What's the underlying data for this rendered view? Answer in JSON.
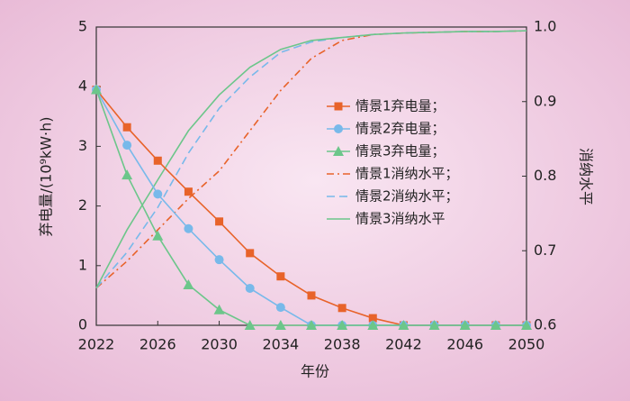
{
  "chart_data": {
    "type": "line",
    "x_label": "年份",
    "y_label": "弃电量/(10⁹kW·h)",
    "y2_label": "消纳水平",
    "x": [
      2022,
      2024,
      2026,
      2028,
      2030,
      2032,
      2034,
      2036,
      2038,
      2040,
      2042,
      2044,
      2046,
      2048,
      2050
    ],
    "xlim": [
      2022,
      2050
    ],
    "xticks": [
      2022,
      2026,
      2030,
      2034,
      2038,
      2042,
      2046,
      2050
    ],
    "ylim": [
      0,
      5
    ],
    "yticks": [
      0,
      1,
      2,
      3,
      4,
      5
    ],
    "y2lim": [
      0.6,
      1
    ],
    "y2ticks": [
      0.6,
      0.7,
      0.8,
      0.9,
      {
        "value": 1,
        "label": "1.0"
      }
    ],
    "series": [
      {
        "name": "情景1弃电量；",
        "color": "#e8632a",
        "marker": "square",
        "style": "solid",
        "values": [
          3.95,
          3.32,
          2.76,
          2.24,
          1.74,
          1.21,
          0.82,
          0.5,
          0.29,
          0.12,
          0,
          0,
          0,
          0,
          0
        ]
      },
      {
        "name": "情景2弃电量；",
        "color": "#78b9ea",
        "marker": "circle",
        "style": "solid",
        "values": [
          3.95,
          3.02,
          2.2,
          1.62,
          1.1,
          0.62,
          0.3,
          0,
          0,
          0,
          0,
          0,
          0,
          0,
          0
        ]
      },
      {
        "name": "情景3弃电量；",
        "color": "#6cc68a",
        "marker": "triangle",
        "style": "solid",
        "values": [
          3.95,
          2.52,
          1.5,
          0.68,
          0.26,
          0,
          0,
          0,
          0,
          0,
          0,
          0,
          0,
          0,
          0
        ]
      },
      {
        "name": "情景1消纳水平；",
        "color": "#e8632a",
        "style": "dashdot",
        "axis": "y2",
        "values": [
          0.65,
          0.686,
          0.728,
          0.77,
          0.807,
          0.861,
          0.915,
          0.958,
          0.982,
          0.99,
          0.992,
          0.993,
          0.994,
          0.994,
          0.995
        ]
      },
      {
        "name": "情景2消纳水平；",
        "color": "#78b9ea",
        "style": "dashed",
        "axis": "y2",
        "values": [
          0.65,
          0.698,
          0.758,
          0.831,
          0.891,
          0.933,
          0.966,
          0.98,
          0.986,
          0.99,
          0.992,
          0.993,
          0.994,
          0.994,
          0.995
        ]
      },
      {
        "name": "情景3消纳水平",
        "color": "#6cc68a",
        "style": "solid",
        "axis": "y2",
        "values": [
          0.65,
          0.728,
          0.795,
          0.861,
          0.909,
          0.946,
          0.97,
          0.982,
          0.986,
          0.99,
          0.992,
          0.993,
          0.994,
          0.994,
          0.995
        ]
      }
    ]
  }
}
